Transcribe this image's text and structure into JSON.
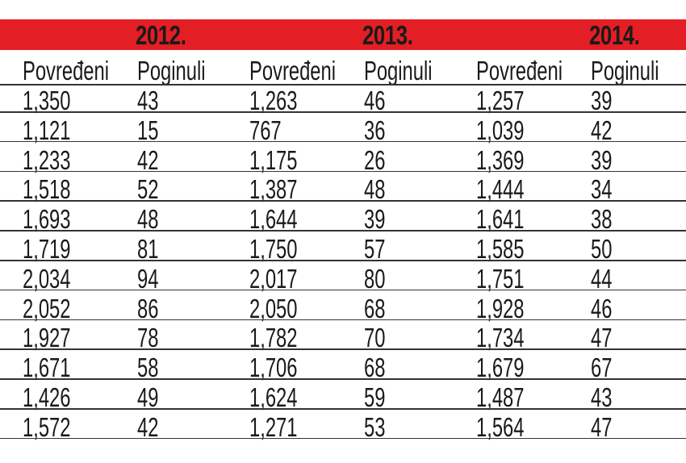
{
  "colors": {
    "header_band": "#e31e24",
    "text": "#1a1a1a",
    "rule": "#333333"
  },
  "chart_data": {
    "type": "table",
    "years": [
      "2012.",
      "2013.",
      "2014."
    ],
    "column_headers": [
      "Povređeni",
      "Poginuli"
    ],
    "rows": [
      [
        "1,350",
        "43",
        "1,263",
        "46",
        "1,257",
        "39"
      ],
      [
        "1,121",
        "15",
        "767",
        "36",
        "1,039",
        "42"
      ],
      [
        "1,233",
        "42",
        "1,175",
        "26",
        "1,369",
        "39"
      ],
      [
        "1,518",
        "52",
        "1,387",
        "48",
        "1,444",
        "34"
      ],
      [
        "1,693",
        "48",
        "1,644",
        "39",
        "1,641",
        "38"
      ],
      [
        "1,719",
        "81",
        "1,750",
        "57",
        "1,585",
        "50"
      ],
      [
        "2,034",
        "94",
        "2,017",
        "80",
        "1,751",
        "44"
      ],
      [
        "2,052",
        "86",
        "2,050",
        "68",
        "1,928",
        "46"
      ],
      [
        "1,927",
        "78",
        "1,782",
        "70",
        "1,734",
        "47"
      ],
      [
        "1,671",
        "58",
        "1,706",
        "68",
        "1,679",
        "67"
      ],
      [
        "1,426",
        "49",
        "1,624",
        "59",
        "1,487",
        "43"
      ],
      [
        "1,572",
        "42",
        "1,271",
        "53",
        "1,564",
        "47"
      ]
    ]
  }
}
